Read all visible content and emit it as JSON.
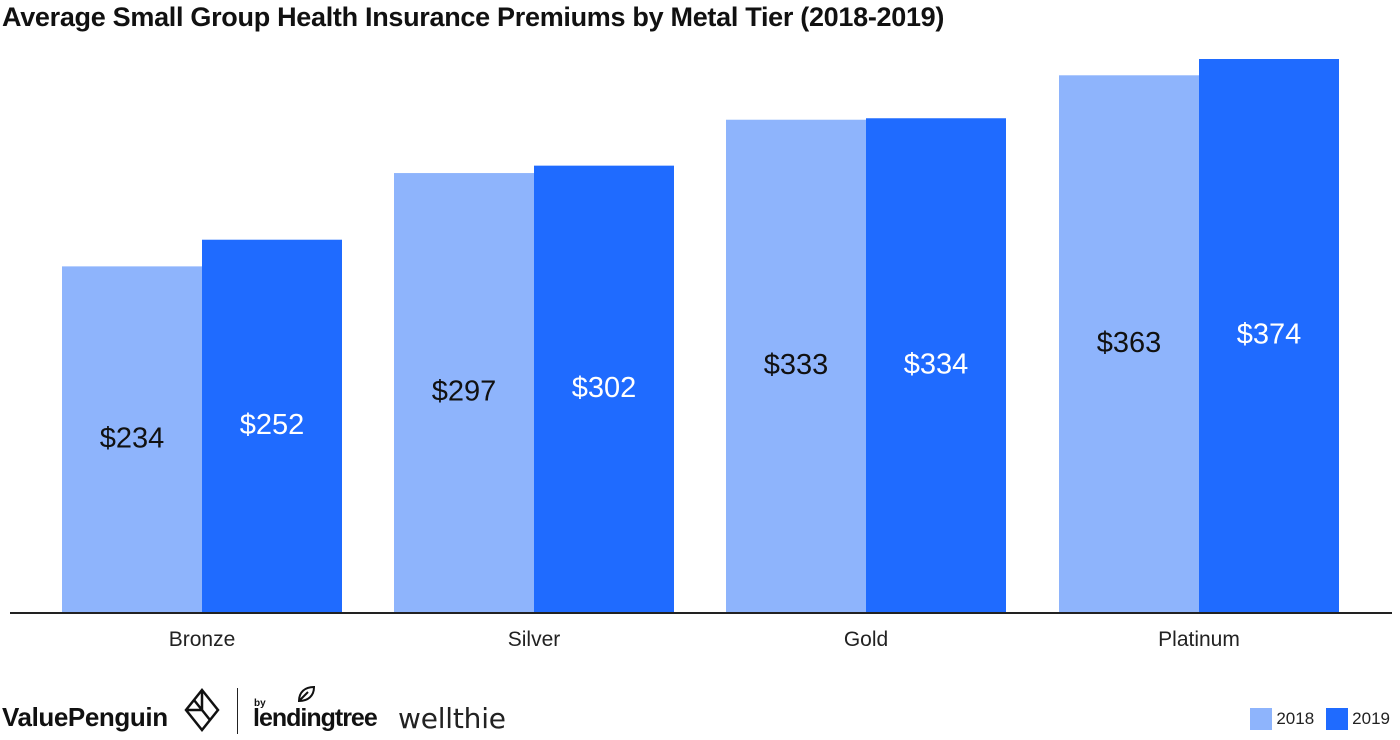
{
  "chart_data": {
    "type": "bar",
    "title": "Average Small Group Health Insurance Premiums by Metal Tier (2018-2019)",
    "categories": [
      "Bronze",
      "Silver",
      "Gold",
      "Platinum"
    ],
    "series": [
      {
        "name": "2018",
        "values": [
          234,
          297,
          333,
          363
        ],
        "labels": [
          "$234",
          "$297",
          "$333",
          "$363"
        ],
        "color": "#8EB4FC"
      },
      {
        "name": "2019",
        "values": [
          252,
          302,
          334,
          374
        ],
        "labels": [
          "$252",
          "$302",
          "$334",
          "$374"
        ],
        "color": "#1F6BFF"
      }
    ],
    "ylim": [
      0,
      374
    ],
    "grid": false,
    "legend_position": "bottom-right",
    "label_colors": {
      "2018": "#111111",
      "2019": "#ffffff"
    }
  },
  "footer": {
    "brand_valuepenguin": "ValuePenguin",
    "brand_by": "by",
    "brand_lendingtree": "lendingtree",
    "brand_wellthie": "wellthie"
  }
}
